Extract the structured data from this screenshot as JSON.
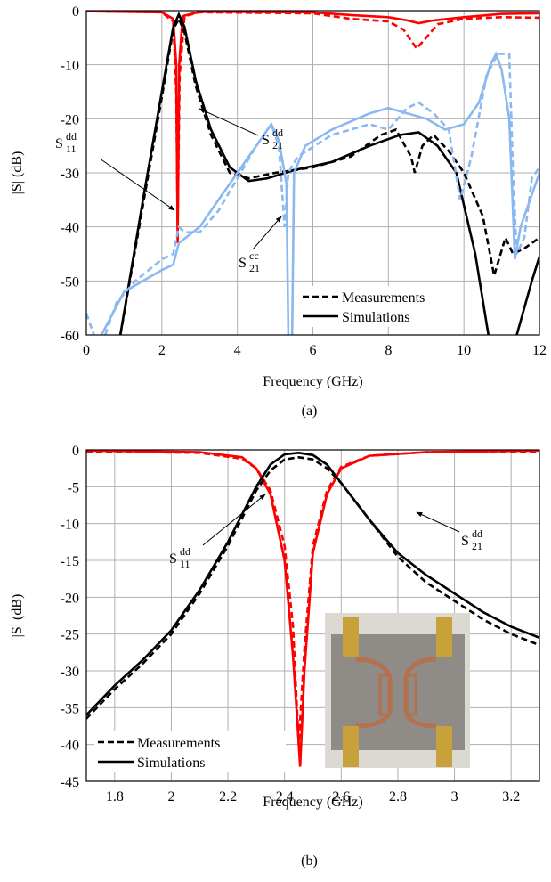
{
  "chart_data": [
    {
      "type": "line",
      "xlabel": "Frequency (GHz)",
      "ylabel": "|S| (dB)",
      "caption": "(a)",
      "xlim": [
        0,
        12
      ],
      "ylim": [
        -60,
        0
      ],
      "xticks": [
        0,
        2,
        4,
        6,
        8,
        10,
        12
      ],
      "yticks": [
        0,
        -10,
        -20,
        -30,
        -40,
        -50,
        -60
      ],
      "grid": true,
      "legend": [
        {
          "label": "Measurements",
          "dashed": true
        },
        {
          "label": "Simulations",
          "dashed": false
        }
      ],
      "annotations": [
        {
          "base": "S",
          "sub": "11",
          "sup": "dd"
        },
        {
          "base": "S",
          "sub": "21",
          "sup": "dd"
        },
        {
          "base": "S",
          "sub": "21",
          "sup": "cc"
        }
      ],
      "series": [
        {
          "color": "#ff0000",
          "dashed": true,
          "x": [
            0,
            2,
            2.3,
            2.38,
            2.42,
            2.47,
            2.6,
            3,
            6,
            7,
            8,
            8.4,
            8.75,
            9,
            9.3,
            10,
            11,
            12
          ],
          "values": [
            -0.1,
            -0.3,
            -2,
            -15,
            -40,
            -12,
            -1,
            -0.3,
            -0.5,
            -1.5,
            -2,
            -3.5,
            -7,
            -5,
            -2.5,
            -1.5,
            -1.2,
            -1.3
          ]
        },
        {
          "color": "#ff0000",
          "dashed": false,
          "x": [
            0,
            2,
            2.3,
            2.38,
            2.42,
            2.46,
            2.55,
            3,
            6,
            7,
            8,
            8.5,
            8.8,
            9.2,
            10,
            11,
            12
          ],
          "values": [
            -0.1,
            -0.3,
            -1.5,
            -10,
            -43,
            -10,
            -1,
            -0.2,
            -0.3,
            -0.8,
            -1.2,
            -1.8,
            -2.3,
            -1.8,
            -1.2,
            -0.6,
            -0.5
          ]
        },
        {
          "color": "#000000",
          "dashed": true,
          "x": [
            0.9,
            1.5,
            2,
            2.3,
            2.45,
            2.6,
            2.9,
            3.3,
            3.8,
            4.3,
            5,
            6,
            7,
            7.8,
            8.2,
            8.6,
            8.7,
            8.9,
            9.2,
            9.6,
            10,
            10.5,
            10.8,
            11.1,
            11.3,
            11.6,
            12
          ],
          "values": [
            -60,
            -36,
            -16,
            -3.5,
            -1.5,
            -4,
            -14,
            -23,
            -30,
            -31,
            -30,
            -29,
            -27,
            -23,
            -22,
            -27,
            -30,
            -25,
            -23,
            -26,
            -30,
            -38,
            -49,
            -42,
            -45,
            -44,
            -42
          ]
        },
        {
          "color": "#000000",
          "dashed": false,
          "x": [
            0.9,
            1.5,
            2,
            2.3,
            2.45,
            2.6,
            2.9,
            3.3,
            3.8,
            4.3,
            4.8,
            5.5,
            6.5,
            7.5,
            8.3,
            8.8,
            9.3,
            9.8,
            10.3,
            10.65,
            11,
            11.4,
            11.8,
            12
          ],
          "values": [
            -60,
            -35,
            -15,
            -3,
            -0.7,
            -3,
            -13,
            -22,
            -29,
            -31.5,
            -31,
            -29.5,
            -28,
            -25,
            -23,
            -22.5,
            -25,
            -30,
            -45,
            -60,
            null,
            -60,
            -50,
            -45.5
          ]
        },
        {
          "color": "#8ab8f0",
          "dashed": true,
          "x": [
            0,
            0.2,
            0.35,
            0.5,
            0.8,
            1.3,
            2,
            2.3,
            2.45,
            2.6,
            3,
            3.5,
            4,
            4.5,
            4.9,
            5.1,
            5.25,
            5.35,
            5.6,
            6.5,
            7,
            7.5,
            8,
            8.5,
            8.8,
            9.2,
            9.6,
            9.9,
            10.2,
            10.6,
            10.9,
            11.2,
            11.3,
            11.4,
            11.6,
            11.8,
            12
          ],
          "values": [
            -56,
            -60,
            null,
            -60,
            -54,
            -50,
            -46,
            -45,
            -40,
            -41,
            -41,
            -37,
            -31,
            -25,
            -21,
            -25,
            -40,
            -30,
            -27,
            -23,
            -22,
            -21,
            -22,
            -18,
            -17,
            -19,
            -22,
            -35,
            -27,
            -12,
            -8,
            -8,
            -30,
            -45,
            -42,
            -31,
            -29
          ]
        },
        {
          "color": "#8ab8f0",
          "dashed": false,
          "x": [
            0.4,
            1,
            1.5,
            2,
            2.3,
            2.45,
            3,
            3.5,
            4,
            4.5,
            4.9,
            5.1,
            5.3,
            5.35,
            5.4,
            5.45,
            5.5,
            5.8,
            6.5,
            7.5,
            8,
            9,
            9.5,
            10,
            10.4,
            10.7,
            10.85,
            11,
            11.2,
            11.35,
            11.5,
            12
          ],
          "values": [
            -60,
            -52,
            -50,
            -48,
            -47,
            -43,
            -40,
            -35,
            -30,
            -25,
            -21,
            -24,
            -32,
            -60,
            null,
            -60,
            -30,
            -25,
            -22,
            -19,
            -18,
            -20,
            -22,
            -21,
            -17,
            -10,
            -8,
            -11,
            -20,
            -46,
            -40,
            -30
          ]
        }
      ]
    },
    {
      "type": "line",
      "xlabel": "Frequency (GHz)",
      "ylabel": "|S| (dB)",
      "caption": "(b)",
      "xlim": [
        1.7,
        3.3
      ],
      "ylim": [
        -45,
        0
      ],
      "xticks": [
        1.8,
        2,
        2.2,
        2.4,
        2.6,
        2.8,
        3,
        3.2
      ],
      "yticks": [
        0,
        -5,
        -10,
        -15,
        -20,
        -25,
        -30,
        -35,
        -40,
        -45
      ],
      "grid": true,
      "legend": [
        {
          "label": "Measurements",
          "dashed": true
        },
        {
          "label": "Simulations",
          "dashed": false
        }
      ],
      "annotations": [
        {
          "base": "S",
          "sub": "11",
          "sup": "dd"
        },
        {
          "base": "S",
          "sub": "21",
          "sup": "dd"
        }
      ],
      "series": [
        {
          "color": "#ff0000",
          "dashed": true,
          "x": [
            1.7,
            2.1,
            2.25,
            2.3,
            2.35,
            2.4,
            2.43,
            2.45,
            2.47,
            2.5,
            2.55,
            2.6,
            2.7,
            2.9,
            3.3
          ],
          "values": [
            -0.2,
            -0.4,
            -1.2,
            -2.5,
            -5.5,
            -13,
            -24,
            -40,
            -27,
            -13,
            -5.5,
            -2.3,
            -0.8,
            -0.3,
            -0.2
          ]
        },
        {
          "color": "#ff0000",
          "dashed": false,
          "x": [
            1.7,
            2.1,
            2.25,
            2.3,
            2.35,
            2.4,
            2.43,
            2.455,
            2.47,
            2.5,
            2.55,
            2.6,
            2.7,
            2.9,
            3.3
          ],
          "values": [
            -0.1,
            -0.3,
            -1,
            -2.5,
            -6,
            -15,
            -28,
            -43,
            -30,
            -14,
            -6,
            -2.5,
            -0.8,
            -0.3,
            -0.1
          ]
        },
        {
          "color": "#000000",
          "dashed": true,
          "x": [
            1.7,
            1.8,
            1.9,
            2,
            2.1,
            2.2,
            2.3,
            2.35,
            2.4,
            2.45,
            2.5,
            2.55,
            2.6,
            2.7,
            2.8,
            2.9,
            3,
            3.1,
            3.2,
            3.3
          ],
          "values": [
            -36.5,
            -32.5,
            -29,
            -25,
            -19.5,
            -13,
            -5.5,
            -2.8,
            -1.3,
            -1,
            -1.3,
            -2.5,
            -4.5,
            -9.5,
            -14.5,
            -18,
            -20.5,
            -23,
            -25,
            -26.5
          ]
        },
        {
          "color": "#000000",
          "dashed": false,
          "x": [
            1.7,
            1.8,
            1.9,
            2,
            2.1,
            2.2,
            2.3,
            2.35,
            2.4,
            2.45,
            2.5,
            2.55,
            2.6,
            2.7,
            2.8,
            2.9,
            3,
            3.1,
            3.2,
            3.3
          ],
          "values": [
            -36,
            -32,
            -28.5,
            -24.5,
            -19,
            -12.5,
            -5,
            -2,
            -0.6,
            -0.4,
            -0.7,
            -2,
            -4.5,
            -9.5,
            -14,
            -17,
            -19.5,
            -22,
            -24,
            -25.5
          ]
        }
      ]
    }
  ]
}
